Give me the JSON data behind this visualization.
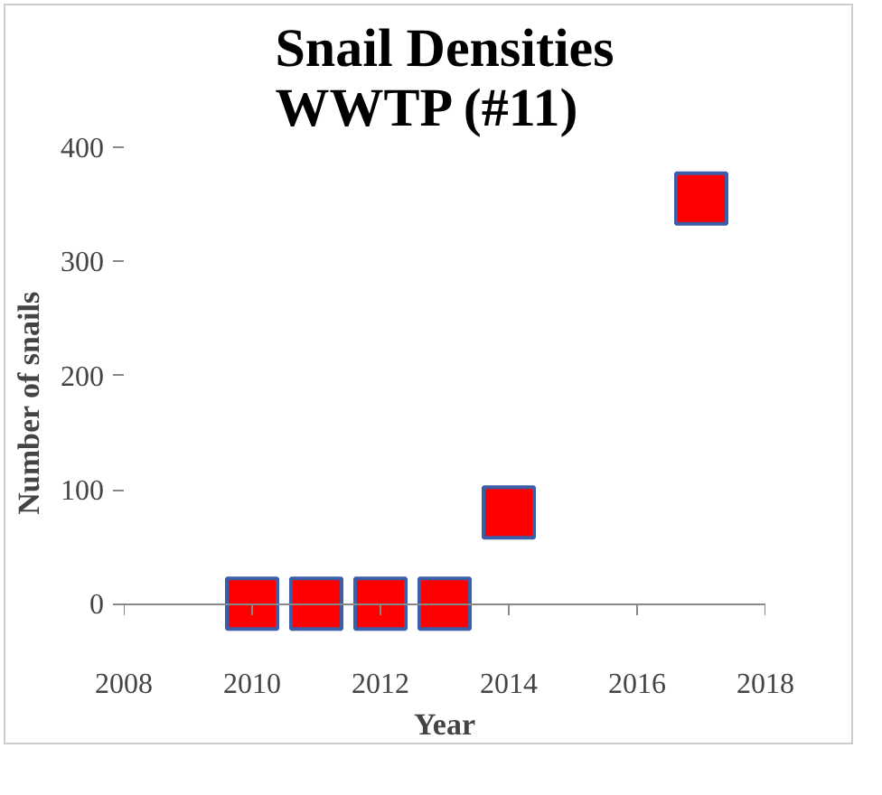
{
  "chart_data": {
    "type": "scatter",
    "title": "Snail Densities\nWWTP (#11)",
    "xlabel": "Year",
    "ylabel": "Number of snails",
    "x": [
      2010,
      2011,
      2012,
      2013,
      2014,
      2017
    ],
    "series": [
      {
        "color": "#ff0000",
        "values": [
          0,
          0,
          0,
          0,
          80,
          355
        ]
      }
    ],
    "xlim": [
      2008,
      2018
    ],
    "xticks": [
      2008,
      2010,
      2012,
      2014,
      2016,
      2018
    ],
    "ylim": [
      0,
      400
    ],
    "yticks": [
      0,
      100,
      200,
      300,
      400
    ],
    "grid": false,
    "marker": "square"
  }
}
